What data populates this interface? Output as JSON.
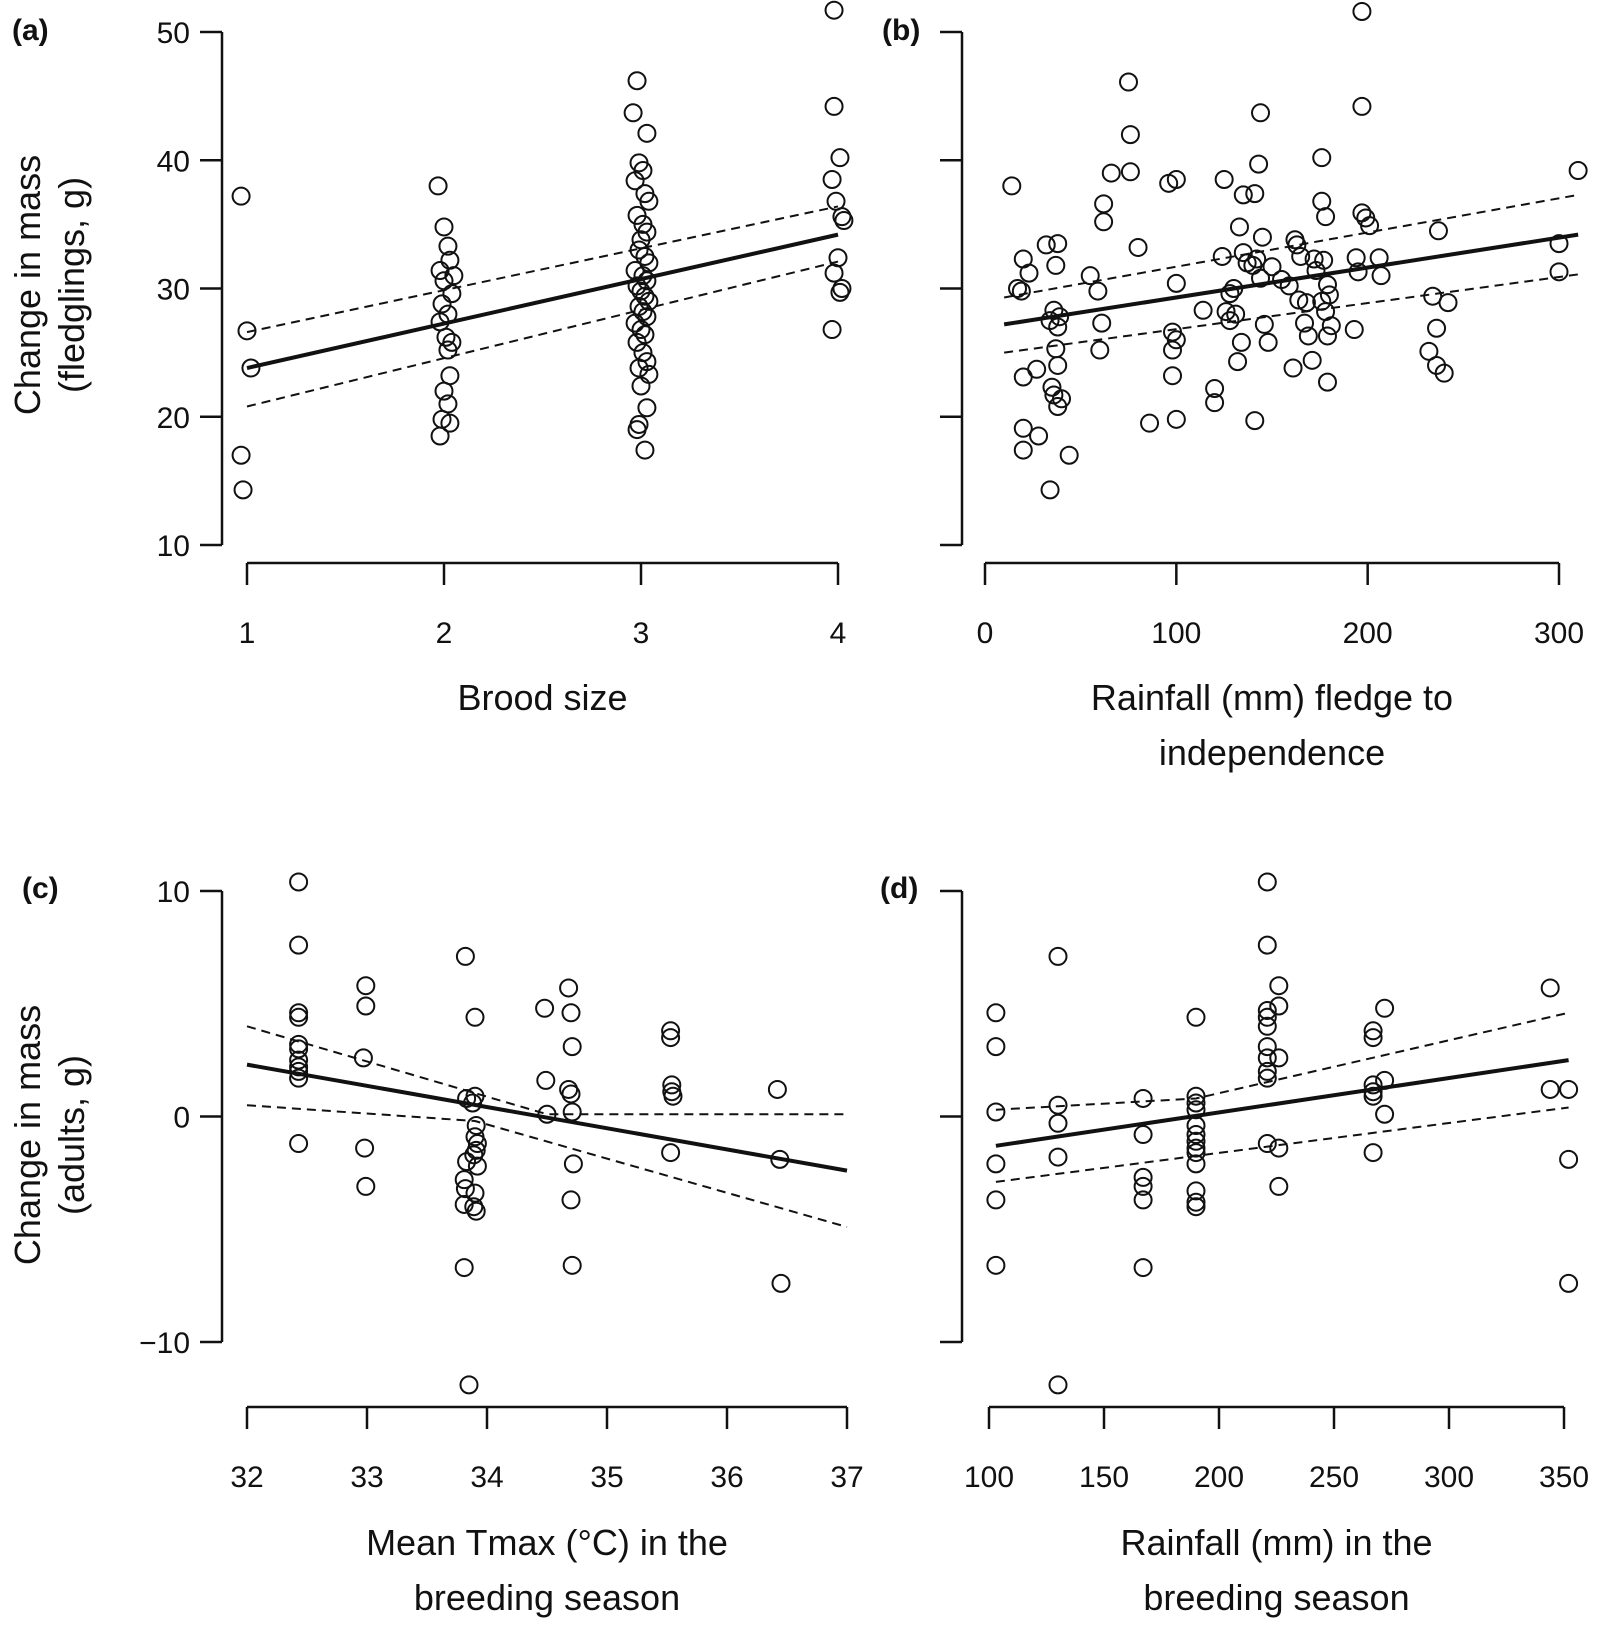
{
  "figure": {
    "row_labels": [
      [
        "Change in mass",
        "(fledglings, g)"
      ],
      [
        "Change in mass",
        "(adults, g)"
      ]
    ]
  },
  "chart_data": [
    {
      "panel": "(a)",
      "type": "scatter",
      "xlabel": [
        "Brood size"
      ],
      "xlim": [
        1,
        4
      ],
      "ylim": [
        10,
        50
      ],
      "xticks": [
        1,
        2,
        3,
        4
      ],
      "yticks": [
        10,
        20,
        30,
        40,
        50
      ],
      "ytick_labels": [
        "10",
        "20",
        "30",
        "40",
        "50"
      ],
      "points": [
        [
          0.97,
          37.2
        ],
        [
          1.0,
          26.7
        ],
        [
          0.97,
          17.0
        ],
        [
          0.98,
          14.3
        ],
        [
          1.02,
          23.8
        ],
        [
          1.97,
          38.0
        ],
        [
          2.0,
          34.8
        ],
        [
          2.02,
          33.3
        ],
        [
          1.98,
          31.4
        ],
        [
          2.03,
          32.2
        ],
        [
          2.05,
          31.0
        ],
        [
          2.0,
          30.6
        ],
        [
          2.04,
          29.6
        ],
        [
          1.99,
          28.8
        ],
        [
          2.02,
          28.0
        ],
        [
          1.98,
          27.4
        ],
        [
          2.01,
          26.2
        ],
        [
          2.04,
          25.8
        ],
        [
          2.02,
          25.2
        ],
        [
          2.03,
          23.2
        ],
        [
          2.0,
          22.0
        ],
        [
          2.02,
          21.0
        ],
        [
          1.99,
          19.8
        ],
        [
          2.03,
          19.5
        ],
        [
          1.98,
          18.5
        ],
        [
          2.98,
          46.2
        ],
        [
          2.96,
          43.7
        ],
        [
          3.03,
          42.1
        ],
        [
          2.99,
          39.8
        ],
        [
          3.01,
          39.2
        ],
        [
          2.97,
          38.4
        ],
        [
          3.02,
          37.4
        ],
        [
          3.04,
          36.8
        ],
        [
          2.98,
          35.7
        ],
        [
          3.01,
          35.0
        ],
        [
          3.03,
          34.4
        ],
        [
          3.0,
          33.8
        ],
        [
          2.99,
          33.0
        ],
        [
          3.02,
          32.5
        ],
        [
          3.04,
          32.0
        ],
        [
          2.97,
          31.4
        ],
        [
          3.01,
          31.0
        ],
        [
          3.03,
          30.6
        ],
        [
          2.98,
          30.2
        ],
        [
          3.0,
          29.8
        ],
        [
          3.02,
          29.4
        ],
        [
          3.04,
          29.0
        ],
        [
          2.99,
          28.6
        ],
        [
          3.01,
          28.2
        ],
        [
          3.03,
          27.8
        ],
        [
          2.97,
          27.3
        ],
        [
          3.0,
          26.8
        ],
        [
          3.02,
          26.4
        ],
        [
          2.98,
          25.8
        ],
        [
          3.01,
          25.0
        ],
        [
          3.03,
          24.3
        ],
        [
          2.99,
          23.8
        ],
        [
          3.04,
          23.3
        ],
        [
          3.0,
          22.4
        ],
        [
          3.03,
          20.7
        ],
        [
          2.99,
          19.4
        ],
        [
          2.98,
          19.0
        ],
        [
          3.02,
          17.4
        ],
        [
          3.98,
          51.7
        ],
        [
          3.98,
          44.2
        ],
        [
          4.01,
          40.2
        ],
        [
          3.97,
          38.5
        ],
        [
          3.99,
          36.8
        ],
        [
          4.02,
          35.6
        ],
        [
          4.03,
          35.3
        ],
        [
          4.0,
          32.4
        ],
        [
          3.98,
          31.2
        ],
        [
          4.02,
          30.0
        ],
        [
          4.01,
          29.7
        ],
        [
          3.97,
          26.8
        ]
      ],
      "fit": {
        "x": [
          1,
          4
        ],
        "y": [
          23.8,
          34.2
        ]
      },
      "ci_lower": {
        "x": [
          1,
          4
        ],
        "y": [
          20.8,
          32.1
        ]
      },
      "ci_upper": {
        "x": [
          1,
          4
        ],
        "y": [
          26.6,
          36.4
        ]
      }
    },
    {
      "panel": "(b)",
      "type": "scatter",
      "xlabel": [
        "Rainfall (mm) fledge to",
        "independence"
      ],
      "xlim": [
        0,
        300
      ],
      "ylim": [
        10,
        50
      ],
      "xticks": [
        0,
        100,
        200,
        300
      ],
      "yticks": [
        10,
        20,
        30,
        40,
        50
      ],
      "ytick_labels": [
        "",
        "",
        "",
        "",
        ""
      ],
      "points": [
        [
          14,
          38.0
        ],
        [
          17,
          30.0
        ],
        [
          20,
          32.3
        ],
        [
          23,
          31.2
        ],
        [
          19,
          29.8
        ],
        [
          32,
          33.4
        ],
        [
          38,
          33.5
        ],
        [
          37,
          31.8
        ],
        [
          36,
          28.3
        ],
        [
          39,
          27.8
        ],
        [
          34,
          27.5
        ],
        [
          38,
          27.0
        ],
        [
          37,
          25.3
        ],
        [
          38,
          24.0
        ],
        [
          20,
          23.1
        ],
        [
          27,
          23.7
        ],
        [
          35,
          22.3
        ],
        [
          36,
          21.7
        ],
        [
          40,
          21.4
        ],
        [
          38,
          20.8
        ],
        [
          20,
          19.1
        ],
        [
          28,
          18.5
        ],
        [
          20,
          17.4
        ],
        [
          44,
          17.0
        ],
        [
          34,
          14.3
        ],
        [
          55,
          31.0
        ],
        [
          59,
          29.8
        ],
        [
          62,
          36.6
        ],
        [
          62,
          35.2
        ],
        [
          66,
          39.0
        ],
        [
          61,
          27.3
        ],
        [
          60,
          25.2
        ],
        [
          75,
          46.1
        ],
        [
          76,
          42.0
        ],
        [
          76,
          39.1
        ],
        [
          80,
          33.2
        ],
        [
          86,
          19.5
        ],
        [
          96,
          38.2
        ],
        [
          100,
          38.5
        ],
        [
          98,
          26.6
        ],
        [
          100,
          26.0
        ],
        [
          98,
          25.2
        ],
        [
          100,
          30.4
        ],
        [
          98,
          23.2
        ],
        [
          100,
          19.8
        ],
        [
          114,
          28.3
        ],
        [
          120,
          22.2
        ],
        [
          120,
          21.1
        ],
        [
          125,
          38.5
        ],
        [
          133,
          34.8
        ],
        [
          135,
          37.3
        ],
        [
          124,
          32.5
        ],
        [
          130,
          30.0
        ],
        [
          128,
          29.6
        ],
        [
          126,
          28.2
        ],
        [
          128,
          27.5
        ],
        [
          131,
          28.0
        ],
        [
          134,
          25.8
        ],
        [
          132,
          24.3
        ],
        [
          135,
          32.8
        ],
        [
          137,
          32.0
        ],
        [
          140,
          31.8
        ],
        [
          142,
          32.3
        ],
        [
          144,
          43.7
        ],
        [
          143,
          39.7
        ],
        [
          141,
          37.4
        ],
        [
          145,
          34.0
        ],
        [
          144,
          30.8
        ],
        [
          146,
          27.2
        ],
        [
          148,
          25.8
        ],
        [
          141,
          19.7
        ],
        [
          150,
          31.7
        ],
        [
          155,
          30.7
        ],
        [
          159,
          30.2
        ],
        [
          161,
          23.8
        ],
        [
          162,
          33.8
        ],
        [
          163,
          33.4
        ],
        [
          165,
          32.5
        ],
        [
          164,
          29.1
        ],
        [
          167,
          27.3
        ],
        [
          169,
          26.3
        ],
        [
          171,
          24.4
        ],
        [
          172,
          32.3
        ],
        [
          173,
          31.4
        ],
        [
          168,
          28.9
        ],
        [
          176,
          40.2
        ],
        [
          176,
          36.8
        ],
        [
          178,
          35.6
        ],
        [
          177,
          32.2
        ],
        [
          179,
          30.3
        ],
        [
          180,
          29.5
        ],
        [
          176,
          29.0
        ],
        [
          178,
          28.2
        ],
        [
          181,
          27.1
        ],
        [
          179,
          26.3
        ],
        [
          179,
          22.7
        ],
        [
          197,
          51.6
        ],
        [
          197,
          44.2
        ],
        [
          197,
          35.9
        ],
        [
          199,
          35.5
        ],
        [
          201,
          34.9
        ],
        [
          194,
          32.4
        ],
        [
          195,
          31.3
        ],
        [
          193,
          26.8
        ],
        [
          206,
          32.4
        ],
        [
          207,
          31.0
        ],
        [
          234,
          29.4
        ],
        [
          237,
          34.5
        ],
        [
          236,
          26.9
        ],
        [
          232,
          25.1
        ],
        [
          236,
          24.0
        ],
        [
          242,
          28.9
        ],
        [
          240,
          23.4
        ],
        [
          300,
          33.5
        ],
        [
          300,
          31.3
        ],
        [
          310,
          39.2
        ]
      ],
      "fit": {
        "x": [
          10,
          310
        ],
        "y": [
          27.2,
          34.2
        ]
      },
      "ci_lower": {
        "x": [
          10,
          310
        ],
        "y": [
          25.0,
          31.1
        ]
      },
      "ci_upper": {
        "x": [
          10,
          310
        ],
        "y": [
          29.3,
          37.3
        ]
      }
    },
    {
      "panel": "(c)",
      "type": "scatter",
      "xlabel": [
        "Mean Tmax (°C) in the",
        "breeding season"
      ],
      "xlim": [
        32,
        37
      ],
      "ylim": [
        -10,
        10
      ],
      "xticks": [
        32,
        33,
        34,
        35,
        36,
        37
      ],
      "yticks": [
        -10,
        0,
        10
      ],
      "ytick_labels": [
        "−10",
        "0",
        "10"
      ],
      "points": [
        [
          32.43,
          10.4
        ],
        [
          32.43,
          7.6
        ],
        [
          32.43,
          4.6
        ],
        [
          32.43,
          4.4
        ],
        [
          32.43,
          3.2
        ],
        [
          32.43,
          3.0
        ],
        [
          32.43,
          2.5
        ],
        [
          32.43,
          2.2
        ],
        [
          32.43,
          2.0
        ],
        [
          32.43,
          1.7
        ],
        [
          32.43,
          -1.2
        ],
        [
          32.99,
          5.8
        ],
        [
          32.99,
          4.9
        ],
        [
          32.97,
          2.6
        ],
        [
          32.98,
          -1.4
        ],
        [
          32.99,
          -3.1
        ],
        [
          33.82,
          7.1
        ],
        [
          33.9,
          4.4
        ],
        [
          33.83,
          0.8
        ],
        [
          33.88,
          0.6
        ],
        [
          33.9,
          0.9
        ],
        [
          33.91,
          -0.4
        ],
        [
          33.9,
          -0.9
        ],
        [
          33.92,
          -1.2
        ],
        [
          33.91,
          -1.5
        ],
        [
          33.89,
          -1.7
        ],
        [
          33.92,
          -2.2
        ],
        [
          33.83,
          -2.0
        ],
        [
          33.81,
          -2.8
        ],
        [
          33.9,
          -3.4
        ],
        [
          33.82,
          -3.2
        ],
        [
          33.81,
          -3.9
        ],
        [
          33.91,
          -4.2
        ],
        [
          33.89,
          -4.0
        ],
        [
          33.81,
          -6.7
        ],
        [
          33.85,
          -11.9
        ],
        [
          34.48,
          4.8
        ],
        [
          34.49,
          1.6
        ],
        [
          34.5,
          0.1
        ],
        [
          34.68,
          5.7
        ],
        [
          34.7,
          4.6
        ],
        [
          34.71,
          3.1
        ],
        [
          34.68,
          1.2
        ],
        [
          34.7,
          1.0
        ],
        [
          34.71,
          0.2
        ],
        [
          34.72,
          -2.1
        ],
        [
          34.7,
          -3.7
        ],
        [
          34.71,
          -6.6
        ],
        [
          35.53,
          3.8
        ],
        [
          35.53,
          3.5
        ],
        [
          35.54,
          1.4
        ],
        [
          35.54,
          1.1
        ],
        [
          35.55,
          0.9
        ],
        [
          35.53,
          -1.6
        ],
        [
          36.42,
          1.2
        ],
        [
          36.44,
          -1.9
        ],
        [
          36.45,
          -7.4
        ]
      ],
      "fit": {
        "x": [
          32,
          37
        ],
        "y": [
          2.3,
          -2.4
        ]
      },
      "ci_lower": {
        "x": [
          32,
          33.9,
          37
        ],
        "y": [
          0.5,
          -0.2,
          -4.9
        ]
      },
      "ci_upper": {
        "x": [
          32,
          34.5,
          37
        ],
        "y": [
          4.0,
          0.1,
          0.1
        ]
      }
    },
    {
      "panel": "(d)",
      "type": "scatter",
      "xlabel": [
        "Rainfall (mm) in the",
        "breeding season"
      ],
      "xlim": [
        100,
        350
      ],
      "ylim": [
        -10,
        10
      ],
      "xticks": [
        100,
        150,
        200,
        250,
        300,
        350
      ],
      "yticks": [
        -10,
        0,
        10
      ],
      "ytick_labels": [
        "",
        "",
        ""
      ],
      "points": [
        [
          103,
          4.6
        ],
        [
          103,
          3.1
        ],
        [
          103,
          0.2
        ],
        [
          103,
          -2.1
        ],
        [
          103,
          -3.7
        ],
        [
          103,
          -6.6
        ],
        [
          130,
          7.1
        ],
        [
          130,
          0.5
        ],
        [
          130,
          -0.3
        ],
        [
          130,
          -1.8
        ],
        [
          130,
          -11.9
        ],
        [
          167,
          0.8
        ],
        [
          167,
          -0.8
        ],
        [
          167,
          -2.7
        ],
        [
          167,
          -3.1
        ],
        [
          167,
          -3.7
        ],
        [
          167,
          -6.7
        ],
        [
          190,
          4.4
        ],
        [
          190,
          0.9
        ],
        [
          190,
          0.6
        ],
        [
          190,
          0.3
        ],
        [
          190,
          -0.4
        ],
        [
          190,
          -0.8
        ],
        [
          190,
          -1.1
        ],
        [
          190,
          -1.4
        ],
        [
          190,
          -1.6
        ],
        [
          190,
          -2.1
        ],
        [
          190,
          -3.3
        ],
        [
          190,
          -3.8
        ],
        [
          190,
          -4.0
        ],
        [
          221,
          10.4
        ],
        [
          221,
          7.6
        ],
        [
          221,
          4.7
        ],
        [
          221,
          4.4
        ],
        [
          221,
          4.0
        ],
        [
          221,
          3.1
        ],
        [
          221,
          2.6
        ],
        [
          221,
          2.0
        ],
        [
          221,
          1.7
        ],
        [
          221,
          -1.2
        ],
        [
          226,
          5.8
        ],
        [
          226,
          4.9
        ],
        [
          226,
          2.6
        ],
        [
          226,
          -1.4
        ],
        [
          226,
          -3.1
        ],
        [
          267,
          3.8
        ],
        [
          267,
          3.5
        ],
        [
          267,
          1.4
        ],
        [
          267,
          1.1
        ],
        [
          267,
          0.9
        ],
        [
          267,
          -1.6
        ],
        [
          272,
          4.8
        ],
        [
          272,
          1.6
        ],
        [
          272,
          0.1
        ],
        [
          344,
          5.7
        ],
        [
          344,
          1.2
        ],
        [
          352,
          1.2
        ],
        [
          352,
          -1.9
        ],
        [
          352,
          -7.4
        ]
      ],
      "fit": {
        "x": [
          103,
          352
        ],
        "y": [
          -1.3,
          2.5
        ]
      },
      "ci_lower": {
        "x": [
          103,
          352
        ],
        "y": [
          -2.9,
          0.4
        ]
      },
      "ci_upper": {
        "x": [
          103,
          190,
          352
        ],
        "y": [
          0.3,
          0.8,
          4.6
        ]
      }
    }
  ]
}
